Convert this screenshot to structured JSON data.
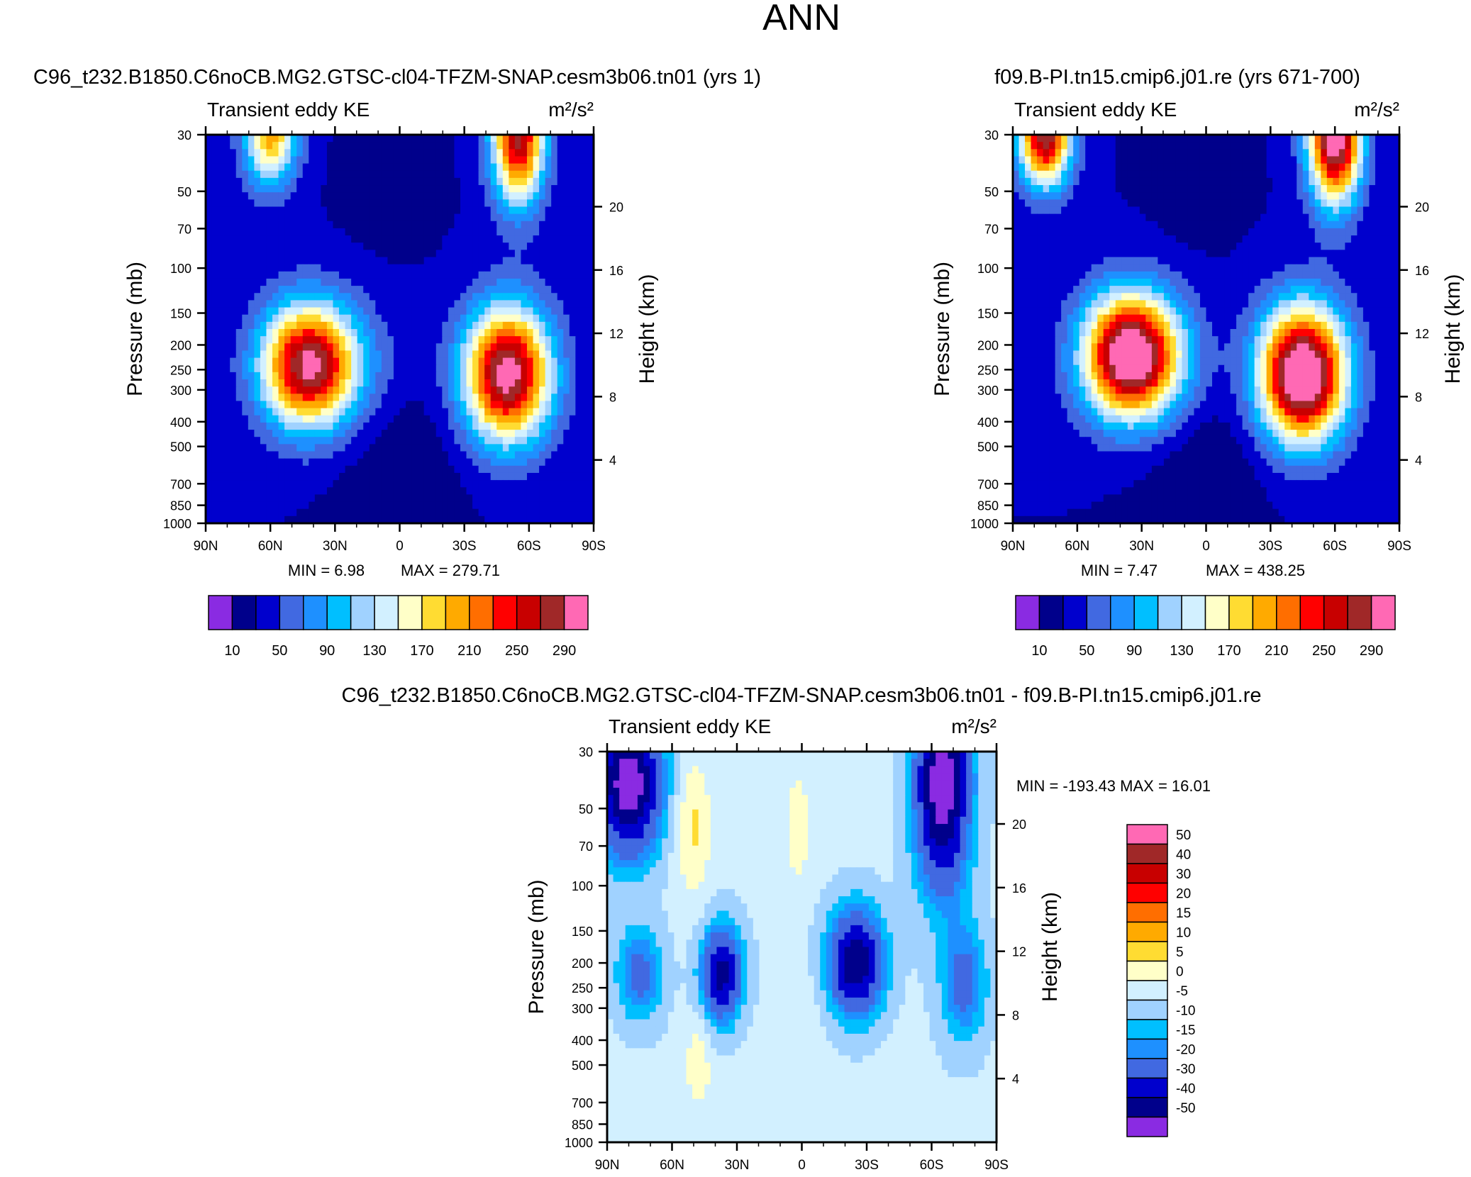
{
  "title": "ANN",
  "units_label": "m²/s²",
  "variable_label": "Transient eddy KE",
  "colors": {
    "abs_palette": [
      "#8a2be2",
      "#00008b",
      "#0000cd",
      "#4169e1",
      "#1e90ff",
      "#00bfff",
      "#a0d2ff",
      "#d2f0ff",
      "#ffffc8",
      "#ffdc32",
      "#ffaa00",
      "#ff6e00",
      "#ff0000",
      "#c80000",
      "#a02828",
      "#ff69b4"
    ],
    "diff_palette": [
      "#8a2be2",
      "#00008b",
      "#0000cd",
      "#4169e1",
      "#1e90ff",
      "#00bfff",
      "#a0d2ff",
      "#d2f0ff",
      "#ffffc8",
      "#ffdc32",
      "#ffaa00",
      "#ff6e00",
      "#ff0000",
      "#c80000",
      "#a02828",
      "#ff69b4"
    ]
  },
  "chart_data": [
    {
      "type": "heatmap",
      "panel": "left",
      "title": "C96_t232.B1850.C6noCB.MG2.GTSC-cl04-TFZM-SNAP.cesm3b06.tn01 (yrs 1)",
      "subtitle_left": "Transient eddy KE",
      "subtitle_right": "m²/s²",
      "xlabel": "",
      "ylabel": "Pressure (mb)",
      "ylabel_right": "Height (km)",
      "x_ticks": [
        "90N",
        "60N",
        "30N",
        "0",
        "30S",
        "60S",
        "90S"
      ],
      "y_ticks": [
        "30",
        "50",
        "70",
        "100",
        "150",
        "200",
        "250",
        "300",
        "400",
        "500",
        "700",
        "850",
        "1000"
      ],
      "y_ticks_right": [
        "20",
        "16",
        "12",
        "8",
        "4"
      ],
      "min_label": "MIN =   6.98",
      "max_label": "MAX = 279.71",
      "min": 6.98,
      "max": 279.71,
      "levels": [
        10,
        30,
        50,
        70,
        90,
        110,
        130,
        150,
        170,
        190,
        210,
        230,
        250,
        270,
        290
      ],
      "colorbar_labels": [
        "10",
        "50",
        "90",
        "130",
        "170",
        "210",
        "250",
        "290"
      ],
      "field": {
        "units": "m2/s2",
        "features": [
          {
            "lat": 42,
            "p": 240,
            "peak": 270
          },
          {
            "lat": -50,
            "p": 260,
            "peak": 278
          },
          {
            "lat": 60,
            "p": 30,
            "peak": 170
          },
          {
            "lat": -55,
            "p": 30,
            "peak": 250
          }
        ]
      }
    },
    {
      "type": "heatmap",
      "panel": "right",
      "title": "f09.B-PI.tn15.cmip6.j01.re (yrs 671-700)",
      "subtitle_left": "Transient eddy KE",
      "subtitle_right": "m²/s²",
      "xlabel": "",
      "ylabel": "Pressure (mb)",
      "ylabel_right": "Height (km)",
      "x_ticks": [
        "90N",
        "60N",
        "30N",
        "0",
        "30S",
        "60S",
        "90S"
      ],
      "y_ticks": [
        "30",
        "50",
        "70",
        "100",
        "150",
        "200",
        "250",
        "300",
        "400",
        "500",
        "700",
        "850",
        "1000"
      ],
      "y_ticks_right": [
        "20",
        "16",
        "12",
        "8",
        "4"
      ],
      "min_label": "MIN =   7.47",
      "max_label": "MAX = 438.25",
      "min": 7.47,
      "max": 438.25,
      "levels": [
        10,
        30,
        50,
        70,
        90,
        110,
        130,
        150,
        170,
        190,
        210,
        230,
        250,
        270,
        290
      ],
      "colorbar_labels": [
        "10",
        "50",
        "90",
        "130",
        "170",
        "210",
        "250",
        "290"
      ],
      "field": {
        "units": "m2/s2",
        "features": [
          {
            "lat": 35,
            "p": 220,
            "peak": 310
          },
          {
            "lat": -45,
            "p": 260,
            "peak": 320
          },
          {
            "lat": 75,
            "p": 30,
            "peak": 260
          },
          {
            "lat": -60,
            "p": 30,
            "peak": 300
          }
        ]
      }
    },
    {
      "type": "heatmap",
      "panel": "difference",
      "title": "C96_t232.B1850.C6noCB.MG2.GTSC-cl04-TFZM-SNAP.cesm3b06.tn01 - f09.B-PI.tn15.cmip6.j01.re",
      "subtitle_left": "Transient eddy KE",
      "subtitle_right": "m²/s²",
      "xlabel": "",
      "ylabel": "Pressure (mb)",
      "ylabel_right": "Height (km)",
      "x_ticks": [
        "90N",
        "60N",
        "30N",
        "0",
        "30S",
        "60S",
        "90S"
      ],
      "y_ticks": [
        "30",
        "50",
        "70",
        "100",
        "150",
        "200",
        "250",
        "300",
        "400",
        "500",
        "700",
        "850",
        "1000"
      ],
      "y_ticks_right": [
        "20",
        "16",
        "12",
        "8",
        "4"
      ],
      "min_label": "MIN = -193.43",
      "max_label": "MAX =  16.01",
      "min": -193.43,
      "max": 16.01,
      "levels": [
        -50,
        -40,
        -30,
        -20,
        -15,
        -10,
        -5,
        0,
        5,
        10,
        15,
        20,
        30,
        40,
        50
      ],
      "colorbar_labels": [
        "50",
        "40",
        "30",
        "20",
        "15",
        "10",
        "5",
        "0",
        "-5",
        "-10",
        "-15",
        "-20",
        "-30",
        "-40",
        "-50"
      ],
      "field": {
        "units": "m2/s2",
        "features": [
          {
            "lat": -25,
            "p": 200,
            "peak": -45
          },
          {
            "lat": 37,
            "p": 220,
            "peak": -40
          },
          {
            "lat": 80,
            "p": 40,
            "peak": -55
          },
          {
            "lat": -65,
            "p": 40,
            "peak": -55
          },
          {
            "lat": 48,
            "p": 500,
            "peak": 8
          }
        ]
      }
    }
  ]
}
